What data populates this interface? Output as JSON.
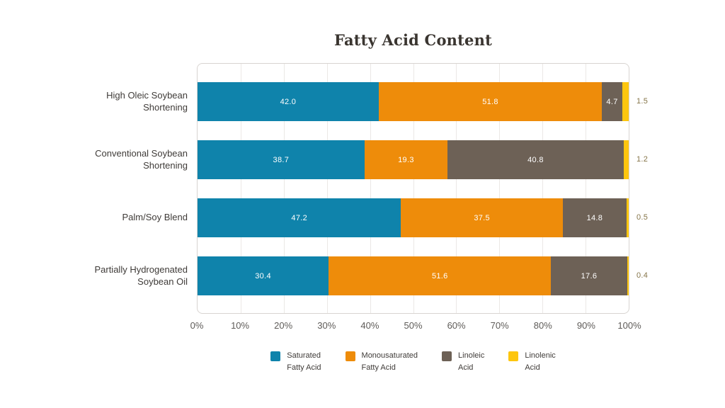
{
  "chart_data": {
    "type": "bar",
    "orientation": "horizontal",
    "stacked": true,
    "title": "Fatty Acid Content",
    "xlabel": "",
    "ylabel": "",
    "xlim": [
      0,
      100
    ],
    "grid": true,
    "legend_position": "bottom",
    "x_ticks": [
      "0%",
      "10%",
      "20%",
      "30%",
      "40%",
      "50%",
      "60%",
      "70%",
      "80%",
      "90%",
      "100%"
    ],
    "categories": [
      "High Oleic Soybean\nShortening",
      "Conventional Soybean\nShortening",
      "Palm/Soy Blend",
      "Partially Hydrogenated\nSoybean Oil"
    ],
    "series": [
      {
        "name": "Saturated Fatty Acid",
        "color": "#0f83ab",
        "values": [
          42.0,
          38.7,
          47.2,
          30.4
        ],
        "labels_outside": false
      },
      {
        "name": "Monousaturated Fatty Acid",
        "color": "#ee8c0a",
        "values": [
          51.8,
          19.3,
          37.5,
          51.6
        ],
        "labels_outside": false
      },
      {
        "name": "Linoleic Acid",
        "color": "#6d6156",
        "values": [
          4.7,
          40.8,
          14.8,
          17.6
        ],
        "labels_outside": false
      },
      {
        "name": "Linolenic Acid",
        "color": "#fdc60f",
        "values": [
          1.5,
          1.2,
          0.5,
          0.4
        ],
        "labels_outside": true
      }
    ],
    "value_label_decimals": 1
  },
  "legend": {
    "items": [
      {
        "label": "Saturated\nFatty Acid",
        "color": "#0f83ab"
      },
      {
        "label": "Monousaturated\nFatty Acid",
        "color": "#ee8c0a"
      },
      {
        "label": "Linoleic\nAcid",
        "color": "#6d6156"
      },
      {
        "label": "Linolenic\nAcid",
        "color": "#fdc60f"
      }
    ]
  },
  "colors": {
    "inside_value_label": "#ffffff",
    "outside_value_label": "#867549",
    "gridline": "#ebe8e6",
    "plot_border": "#d8d4d1",
    "title_text": "#3a3530",
    "axis_text": "#5e5b58",
    "category_text": "#3f3b38"
  }
}
